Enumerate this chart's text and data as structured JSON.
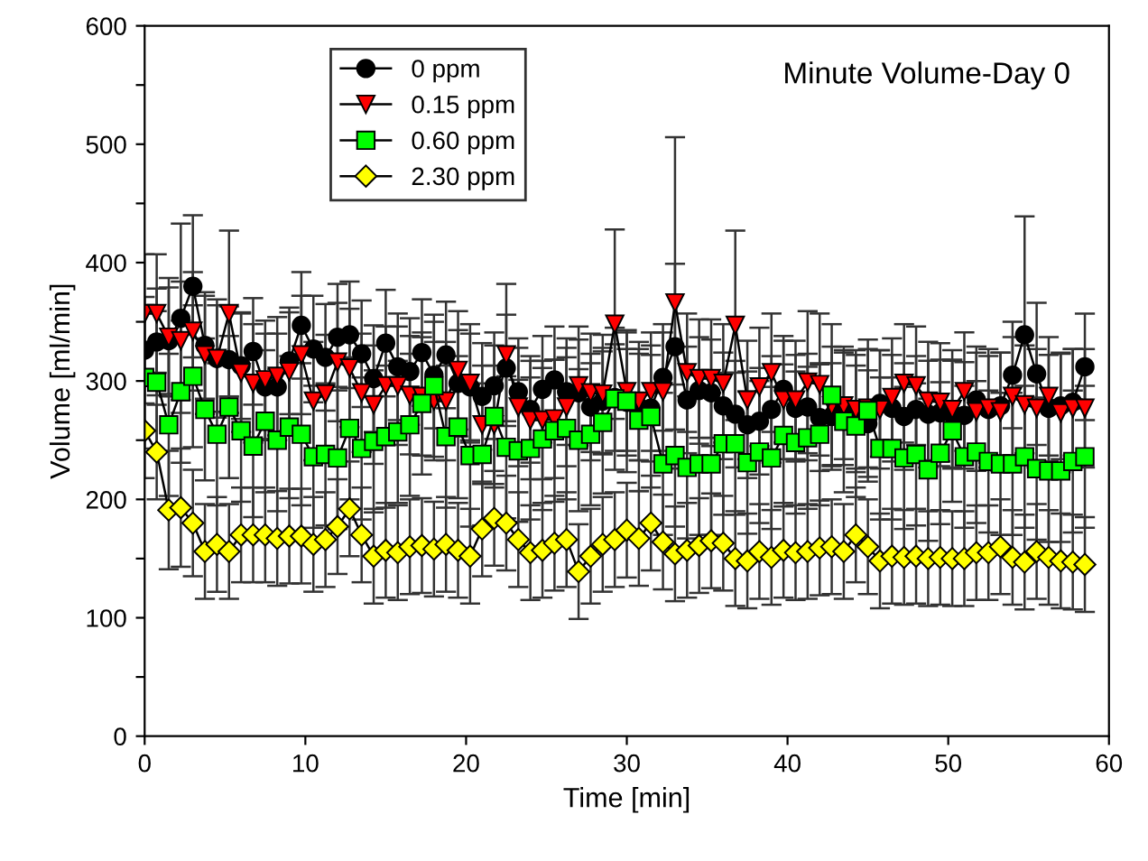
{
  "chart_data": {
    "type": "line",
    "title": "Minute Volume-Day 0",
    "xlabel": "Time [min]",
    "ylabel": "Volume [ml/min]",
    "x": [
      0,
      0.75,
      1.5,
      2.25,
      3,
      3.75,
      4.5,
      5.25,
      6,
      6.75,
      7.5,
      8.25,
      9,
      9.75,
      10.5,
      11.25,
      12,
      12.75,
      13.5,
      14.25,
      15,
      15.75,
      16.5,
      17.25,
      18,
      18.75,
      19.5,
      20.25,
      21,
      21.75,
      22.5,
      23.25,
      24,
      24.75,
      25.5,
      26.25,
      27,
      27.75,
      28.5,
      29.25,
      30,
      30.75,
      31.5,
      32.25,
      33,
      33.75,
      34.5,
      35.25,
      36,
      36.75,
      37.5,
      38.25,
      39,
      39.75,
      40.5,
      41.25,
      42,
      42.75,
      43.5,
      44.25,
      45,
      45.75,
      46.5,
      47.25,
      48,
      48.75,
      49.5,
      50.25,
      51,
      51.75,
      52.5,
      53.25,
      54,
      54.75,
      55.5,
      56.25,
      57,
      57.75,
      58.5
    ],
    "series": [
      {
        "name": "0 ppm",
        "color": "#000000",
        "marker": "circle",
        "values": [
          326,
          333,
          334,
          353,
          380,
          330,
          319,
          318,
          313,
          325,
          295,
          295,
          317,
          347,
          327,
          320,
          337,
          339,
          323,
          302,
          332,
          312,
          308,
          324,
          305,
          322,
          298,
          295,
          287,
          296,
          311,
          291,
          276,
          293,
          301,
          291,
          290,
          278,
          283,
          286,
          282,
          278,
          277,
          303,
          329,
          284,
          292,
          290,
          279,
          272,
          263,
          266,
          276,
          293,
          277,
          278,
          269,
          270,
          279,
          268,
          264,
          281,
          277,
          270,
          276,
          272,
          273,
          272,
          271,
          284,
          276,
          279,
          305,
          339,
          306,
          277,
          279,
          282,
          312
        ],
        "errors": [
          45,
          45,
          45,
          80,
          60,
          45,
          45,
          45,
          45,
          45,
          45,
          45,
          45,
          45,
          45,
          45,
          45,
          45,
          45,
          45,
          45,
          45,
          45,
          45,
          45,
          45,
          45,
          45,
          45,
          45,
          45,
          45,
          45,
          45,
          45,
          45,
          45,
          45,
          45,
          45,
          45,
          45,
          45,
          45,
          70,
          45,
          45,
          45,
          45,
          45,
          45,
          45,
          45,
          45,
          45,
          45,
          45,
          45,
          45,
          45,
          45,
          45,
          45,
          45,
          45,
          45,
          45,
          45,
          45,
          45,
          45,
          45,
          45,
          100,
          60,
          45,
          45,
          45,
          45
        ]
      },
      {
        "name": "0.15 ppm",
        "color": "#ff0000",
        "marker": "triangle",
        "values": [
          357,
          357,
          337,
          334,
          342,
          322,
          319,
          357,
          307,
          298,
          301,
          304,
          308,
          322,
          283,
          289,
          316,
          311,
          290,
          280,
          296,
          296,
          288,
          287,
          283,
          283,
          309,
          298,
          263,
          263,
          322,
          278,
          267,
          267,
          268,
          278,
          296,
          290,
          289,
          348,
          291,
          283,
          291,
          291,
          366,
          307,
          302,
          302,
          298,
          347,
          284,
          295,
          307,
          284,
          284,
          299,
          297,
          279,
          279,
          276,
          277,
          276,
          286,
          298,
          296,
          283,
          282,
          276,
          291,
          274,
          277,
          274,
          287,
          280,
          277,
          287,
          273,
          277,
          277
        ],
        "errors": [
          50,
          50,
          50,
          50,
          50,
          50,
          50,
          70,
          50,
          50,
          50,
          50,
          50,
          50,
          50,
          50,
          50,
          50,
          50,
          50,
          50,
          50,
          50,
          50,
          50,
          50,
          50,
          50,
          50,
          50,
          60,
          50,
          50,
          50,
          50,
          50,
          50,
          50,
          50,
          80,
          50,
          50,
          50,
          50,
          140,
          50,
          50,
          50,
          50,
          80,
          50,
          50,
          50,
          50,
          50,
          60,
          60,
          50,
          50,
          50,
          50,
          50,
          50,
          50,
          50,
          50,
          50,
          50,
          50,
          50,
          50,
          50,
          50,
          50,
          50,
          50,
          50,
          50,
          50
        ]
      },
      {
        "name": "0.60 ppm",
        "color": "#00ff00",
        "marker": "square",
        "values": [
          303,
          299,
          263,
          291,
          304,
          276,
          255,
          278,
          258,
          245,
          266,
          250,
          261,
          255,
          236,
          238,
          235,
          260,
          243,
          249,
          253,
          257,
          263,
          281,
          296,
          253,
          261,
          237,
          238,
          270,
          244,
          241,
          243,
          251,
          258,
          260,
          250,
          255,
          265,
          285,
          283,
          267,
          270,
          230,
          237,
          227,
          230,
          230,
          247,
          247,
          231,
          240,
          235,
          254,
          248,
          252,
          255,
          288,
          266,
          262,
          275,
          243,
          243,
          235,
          238,
          225,
          239,
          258,
          236,
          240,
          232,
          230,
          230,
          236,
          226,
          224,
          224,
          232,
          236
        ],
        "errors": [
          60,
          60,
          60,
          60,
          60,
          60,
          60,
          60,
          60,
          60,
          60,
          60,
          60,
          60,
          60,
          60,
          60,
          60,
          60,
          60,
          60,
          60,
          60,
          60,
          60,
          60,
          60,
          60,
          60,
          60,
          60,
          60,
          60,
          60,
          60,
          60,
          60,
          60,
          60,
          60,
          60,
          60,
          60,
          60,
          60,
          60,
          60,
          60,
          60,
          60,
          60,
          60,
          60,
          60,
          60,
          60,
          60,
          60,
          60,
          60,
          60,
          60,
          60,
          60,
          60,
          60,
          60,
          60,
          60,
          60,
          60,
          60,
          60,
          60,
          60,
          60,
          60,
          60,
          60
        ]
      },
      {
        "name": "2.30 ppm",
        "color": "#ffff00",
        "marker": "diamond",
        "values": [
          258,
          240,
          191,
          193,
          180,
          156,
          162,
          156,
          170,
          170,
          170,
          167,
          169,
          169,
          162,
          166,
          177,
          192,
          170,
          152,
          157,
          155,
          160,
          161,
          158,
          162,
          157,
          152,
          175,
          184,
          180,
          166,
          155,
          157,
          163,
          166,
          139,
          152,
          162,
          166,
          174,
          167,
          180,
          164,
          154,
          157,
          161,
          165,
          163,
          150,
          148,
          156,
          151,
          157,
          155,
          156,
          159,
          160,
          156,
          170,
          160,
          148,
          152,
          151,
          152,
          150,
          151,
          150,
          150,
          155,
          155,
          160,
          151,
          147,
          156,
          151,
          148,
          147,
          145
        ],
        "errors": [
          40,
          40,
          50,
          50,
          45,
          40,
          40,
          40,
          40,
          40,
          40,
          40,
          40,
          40,
          40,
          40,
          40,
          40,
          40,
          40,
          40,
          40,
          40,
          40,
          40,
          40,
          40,
          40,
          40,
          40,
          40,
          40,
          40,
          40,
          40,
          40,
          40,
          40,
          40,
          40,
          40,
          40,
          40,
          40,
          40,
          40,
          40,
          40,
          40,
          40,
          40,
          40,
          40,
          40,
          40,
          40,
          40,
          40,
          40,
          40,
          40,
          40,
          40,
          40,
          40,
          40,
          40,
          40,
          40,
          40,
          40,
          40,
          40,
          40,
          40,
          40,
          40,
          40,
          40
        ]
      }
    ],
    "xlim": [
      0,
      60
    ],
    "xticks": [
      0,
      10,
      20,
      30,
      40,
      50,
      60
    ],
    "ylim": [
      0,
      600
    ],
    "yticks": [
      0,
      {
        "value": 50,
        "label": null
      },
      100,
      {
        "value": 150,
        "label": null
      },
      200,
      {
        "value": 250,
        "label": null
      },
      300,
      {
        "value": 350,
        "label": null
      },
      400,
      {
        "value": 450,
        "label": null
      },
      500,
      {
        "value": 550,
        "label": null
      },
      600
    ],
    "legend": "top left",
    "grid": false,
    "line_style": "solid"
  }
}
